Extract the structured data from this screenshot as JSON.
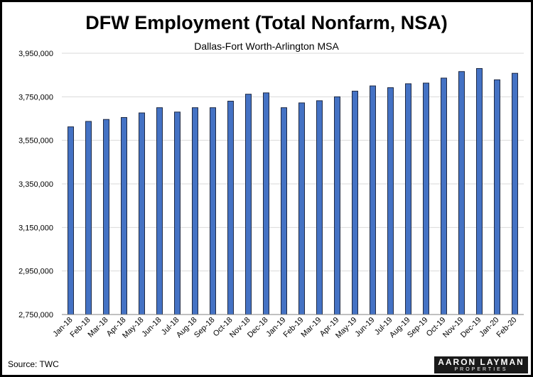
{
  "chart_data": {
    "type": "bar",
    "title": "DFW Employment (Total Nonfarm, NSA)",
    "subtitle": "Dallas-Fort Worth-Arlington MSA",
    "xlabel": "",
    "ylabel": "",
    "categories": [
      "Jan-18",
      "Feb-18",
      "Mar-18",
      "Apr-18",
      "May-18",
      "Jun-18",
      "Jul-18",
      "Aug-18",
      "Sep-18",
      "Oct-18",
      "Nov-18",
      "Dec-18",
      "Jan-19",
      "Feb-19",
      "Mar-19",
      "Apr-19",
      "May-19",
      "Jun-19",
      "Jul-19",
      "Aug-19",
      "Sep-19",
      "Oct-19",
      "Nov-19",
      "Dec-19",
      "Jan-20",
      "Feb-20"
    ],
    "values": [
      3612000,
      3637000,
      3646000,
      3655000,
      3676000,
      3700000,
      3680000,
      3700000,
      3700000,
      3730000,
      3762000,
      3768000,
      3700000,
      3722000,
      3732000,
      3750000,
      3776000,
      3800000,
      3792000,
      3810000,
      3813000,
      3836000,
      3866000,
      3880000,
      3828000,
      3858000
    ],
    "ylim": [
      2750000,
      3950000
    ],
    "yticks": [
      "2,750,000",
      "2,950,000",
      "3,150,000",
      "3,350,000",
      "3,550,000",
      "3,750,000",
      "3,950,000"
    ],
    "grid": true,
    "legend": "none",
    "bar_color": "#4472C4",
    "bar_border": "#1F2A44",
    "grid_color": "#D9D9D9"
  },
  "source": "Source: TWC",
  "logo": {
    "brand": "AARON LAYMAN",
    "sub": "PROPERTIES"
  }
}
